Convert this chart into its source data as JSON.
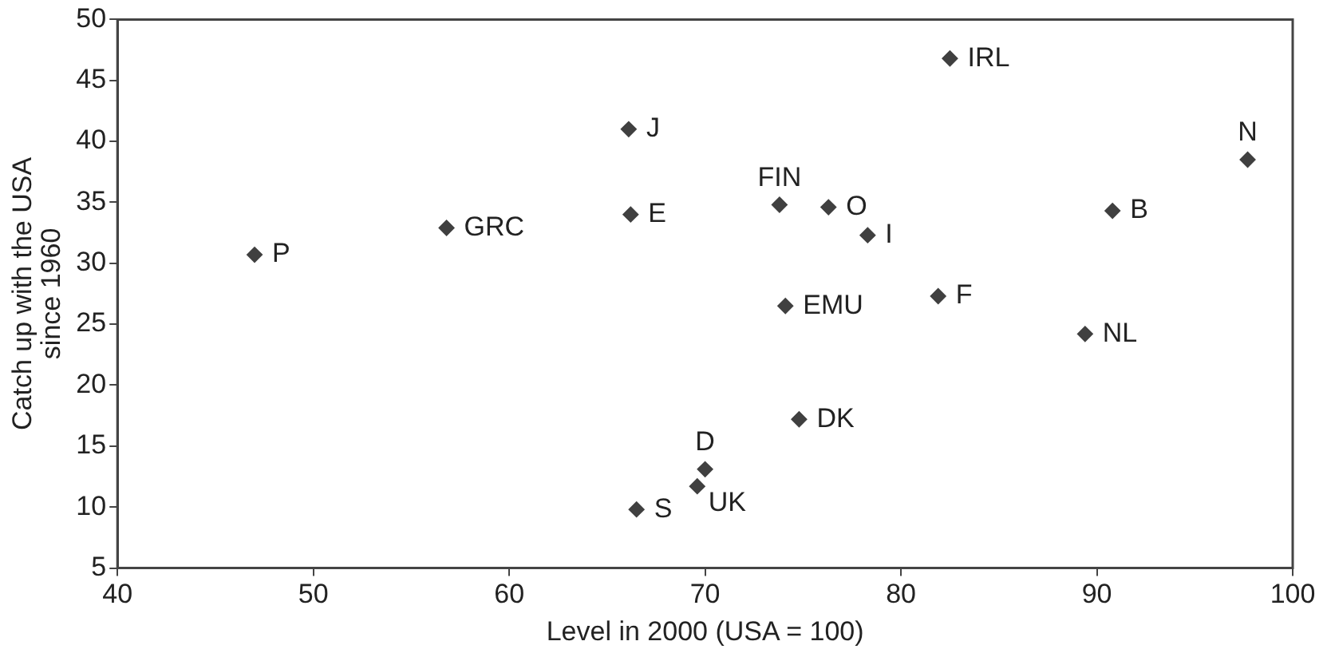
{
  "chart_data": {
    "type": "scatter",
    "xlabel": "Level in 2000 (USA = 100)",
    "ylabel": "Catch up with the USA\nsince 1960",
    "xlim": [
      40,
      100
    ],
    "xticks": [
      40,
      50,
      60,
      70,
      80,
      90,
      100
    ],
    "ylim": [
      5,
      50
    ],
    "yticks": [
      5,
      10,
      15,
      20,
      25,
      30,
      35,
      40,
      45,
      50
    ],
    "grid": false,
    "legend": false,
    "marker": "diamond",
    "series": [
      {
        "color": "#404040",
        "x": [
          47.0,
          56.8,
          66.1,
          66.2,
          66.5,
          82.5,
          97.7,
          73.8,
          76.3,
          78.3,
          90.8,
          81.9,
          74.1,
          89.4,
          74.8,
          70.0,
          69.6
        ],
        "values": [
          30.7,
          32.9,
          41.0,
          34.0,
          9.8,
          46.8,
          38.5,
          34.8,
          34.6,
          32.3,
          34.3,
          27.3,
          26.5,
          24.2,
          17.2,
          13.1,
          11.7
        ]
      }
    ],
    "annotations": [
      {
        "text": "P",
        "x": 47.0,
        "y": 30.7
      },
      {
        "text": "GRC",
        "x": 56.8,
        "y": 32.9
      },
      {
        "text": "J",
        "x": 66.1,
        "y": 41.0
      },
      {
        "text": "E",
        "x": 66.2,
        "y": 34.0
      },
      {
        "text": "S",
        "x": 66.5,
        "y": 9.8
      },
      {
        "text": "IRL",
        "x": 82.5,
        "y": 46.8
      },
      {
        "text": "N",
        "x": 97.7,
        "y": 38.5
      },
      {
        "text": "FIN",
        "x": 73.8,
        "y": 34.8
      },
      {
        "text": "O",
        "x": 76.3,
        "y": 34.6
      },
      {
        "text": "I",
        "x": 78.3,
        "y": 32.3
      },
      {
        "text": "B",
        "x": 90.8,
        "y": 34.3
      },
      {
        "text": "F",
        "x": 81.9,
        "y": 27.3
      },
      {
        "text": "EMU",
        "x": 74.1,
        "y": 26.5
      },
      {
        "text": "NL",
        "x": 89.4,
        "y": 24.2
      },
      {
        "text": "DK",
        "x": 74.8,
        "y": 17.2
      },
      {
        "text": "D",
        "x": 70.0,
        "y": 13.1
      },
      {
        "text": "UK",
        "x": 69.6,
        "y": 11.7
      }
    ]
  }
}
